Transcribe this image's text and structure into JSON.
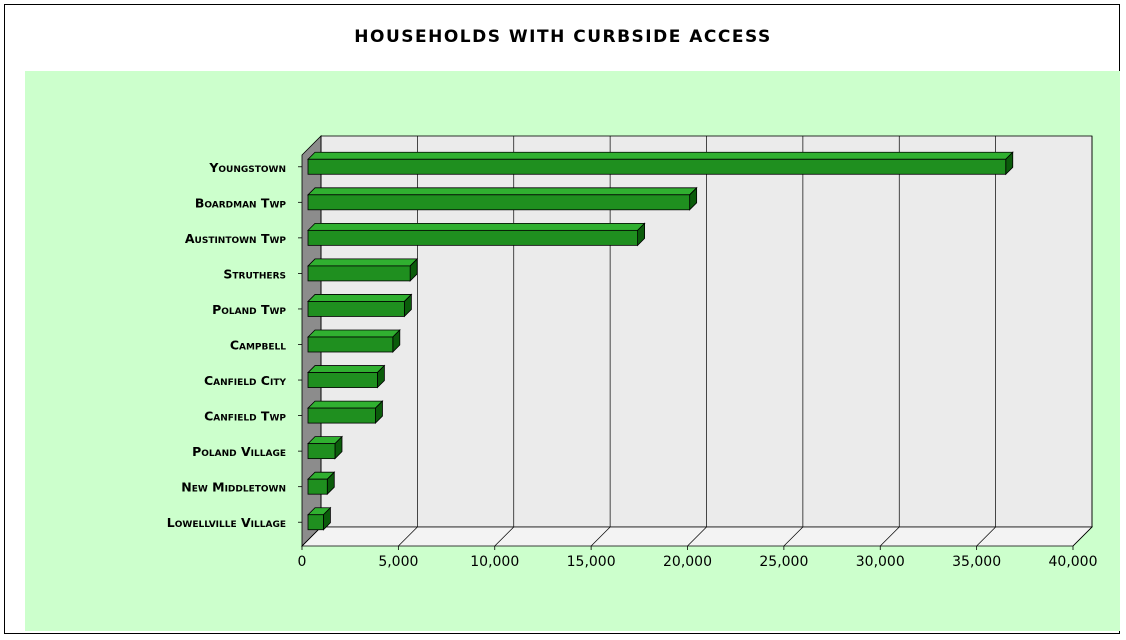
{
  "chart_data": {
    "type": "bar",
    "orientation": "horizontal",
    "title": "Households With Curbside Access",
    "xlabel": "",
    "ylabel": "",
    "categories": [
      "Youngstown",
      "Boardman Twp",
      "Austintown Twp",
      "Struthers",
      "Poland Twp",
      "Campbell",
      "Canfield City",
      "Canfield Twp",
      "Poland Village",
      "New Middletown",
      "Lowellville Village"
    ],
    "values": [
      36200,
      19800,
      17100,
      5300,
      5000,
      4400,
      3600,
      3500,
      1400,
      1000,
      800
    ],
    "xlim": [
      0,
      40000
    ],
    "xticks": [
      "0",
      "5,000",
      "10,000",
      "15,000",
      "20,000",
      "25,000",
      "30,000",
      "35,000",
      "40,000"
    ],
    "grid": "vertical",
    "legend": "none"
  },
  "colors": {
    "bar_front": "#1f8f1f",
    "bar_top": "#30b030",
    "bar_side": "#0b5c0b",
    "wall": "#ebebeb",
    "wall_left": "#8c8c8c",
    "plot_background": "#ccffcc"
  }
}
